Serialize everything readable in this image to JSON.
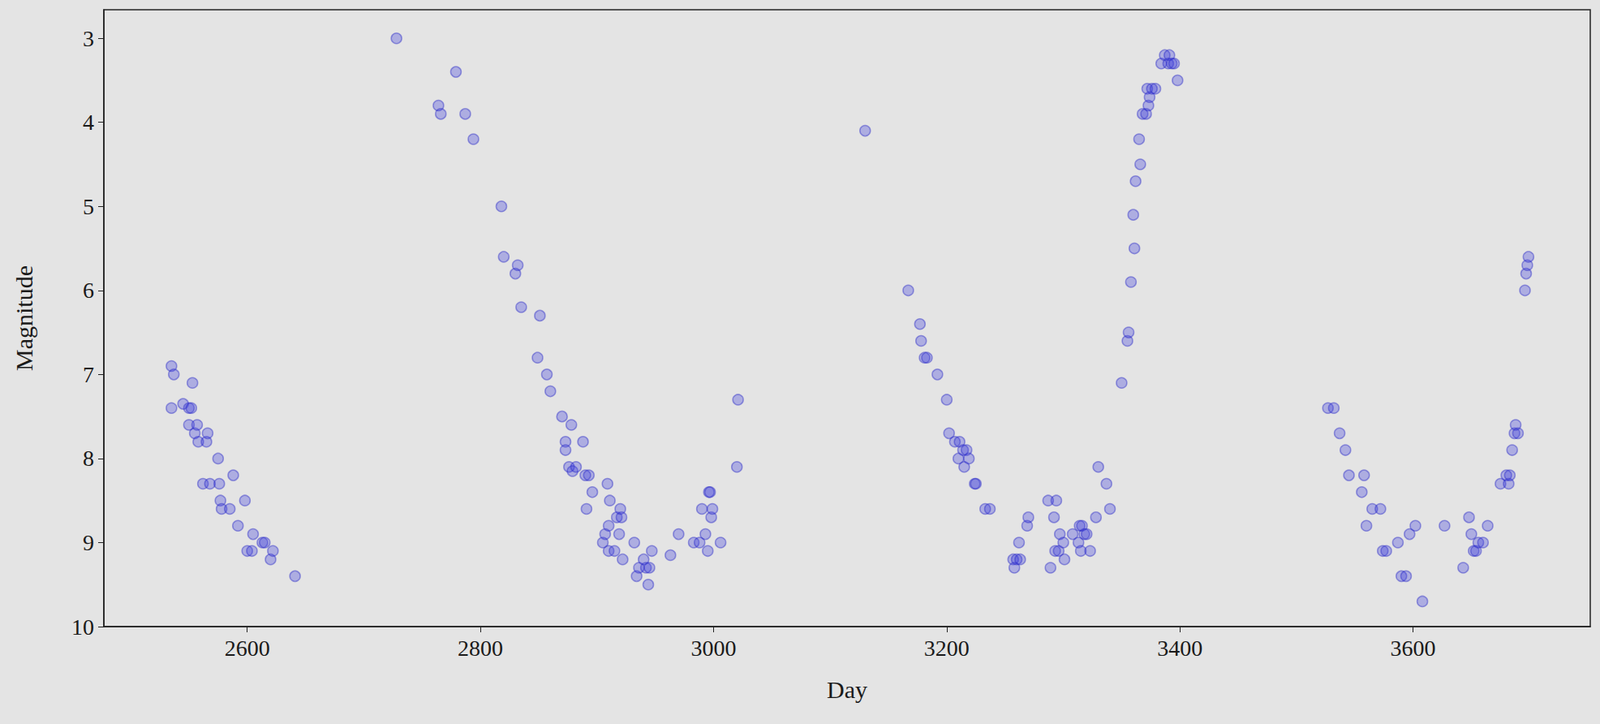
{
  "chart_data": {
    "type": "scatter",
    "xlabel": "Day",
    "ylabel": "Magnitude",
    "color": "#3b3bdc",
    "marker": "circle",
    "grid": false,
    "xlim": [
      2477,
      3752
    ],
    "ylim": [
      10,
      2.66
    ],
    "xticks": [
      2600,
      2800,
      3000,
      3200,
      3400,
      3600
    ],
    "yticks": [
      3,
      4,
      5,
      6,
      7,
      8,
      9,
      10
    ],
    "x": [
      2535,
      2537,
      2535,
      2545,
      2550,
      2552,
      2553,
      2550,
      2555,
      2557,
      2558,
      2562,
      2565,
      2566,
      2568,
      2575,
      2576,
      2577,
      2578,
      2585,
      2588,
      2592,
      2598,
      2600,
      2604,
      2605,
      2613,
      2615,
      2620,
      2622,
      2641,
      2728,
      2764,
      2766,
      2779,
      2787,
      2794,
      2818,
      2820,
      2830,
      2832,
      2835,
      2851,
      2849,
      2857,
      2860,
      2870,
      2873,
      2873,
      2876,
      2878,
      2879,
      2882,
      2888,
      2890,
      2891,
      2893,
      2896,
      2905,
      2907,
      2909,
      2910,
      2910,
      2911,
      2915,
      2917,
      2919,
      2920,
      2921,
      2922,
      2932,
      2934,
      2936,
      2940,
      2942,
      2944,
      2945,
      2947,
      2963,
      2970,
      2983,
      2988,
      2990,
      2993,
      2995,
      2996,
      2997,
      2998,
      2999,
      3006,
      3020,
      3021,
      3130,
      3167,
      3177,
      3178,
      3181,
      3183,
      3192,
      3200,
      3202,
      3207,
      3210,
      3211,
      3214,
      3215,
      3217,
      3219,
      3224,
      3225,
      3233,
      3237,
      3257,
      3258,
      3260,
      3262,
      3263,
      3269,
      3270,
      3287,
      3289,
      3292,
      3293,
      3294,
      3296,
      3297,
      3300,
      3301,
      3308,
      3313,
      3314,
      3315,
      3316,
      3318,
      3320,
      3323,
      3328,
      3330,
      3337,
      3340,
      3350,
      3355,
      3356,
      3358,
      3360,
      3361,
      3362,
      3365,
      3366,
      3368,
      3371,
      3372,
      3373,
      3374,
      3376,
      3379,
      3384,
      3387,
      3390,
      3391,
      3393,
      3395,
      3398,
      3527,
      3532,
      3537,
      3542,
      3545,
      3556,
      3558,
      3560,
      3565,
      3572,
      3574,
      3577,
      3587,
      3590,
      3594,
      3597,
      3602,
      3608,
      3627,
      3643,
      3648,
      3650,
      3652,
      3654,
      3656,
      3660,
      3664,
      3675,
      3680,
      3682,
      3683,
      3685,
      3687,
      3688,
      3690,
      3696,
      3697,
      3698,
      3699
    ],
    "values": [
      6.9,
      7.0,
      7.4,
      7.35,
      7.4,
      7.4,
      7.1,
      7.6,
      7.7,
      7.6,
      7.8,
      8.3,
      7.8,
      7.7,
      8.3,
      8.0,
      8.3,
      8.5,
      8.6,
      8.6,
      8.2,
      8.8,
      8.5,
      9.1,
      9.1,
      8.9,
      9.0,
      9.0,
      9.2,
      9.1,
      9.4,
      3.0,
      3.8,
      3.9,
      3.4,
      3.9,
      4.2,
      5.0,
      5.6,
      5.8,
      5.7,
      6.2,
      6.3,
      6.8,
      7.0,
      7.2,
      7.5,
      7.8,
      7.9,
      8.1,
      7.6,
      8.15,
      8.1,
      7.8,
      8.2,
      8.6,
      8.2,
      8.4,
      9.0,
      8.9,
      8.3,
      8.8,
      9.1,
      8.5,
      9.1,
      8.7,
      8.9,
      8.6,
      8.7,
      9.2,
      9.0,
      9.4,
      9.3,
      9.2,
      9.3,
      9.5,
      9.3,
      9.1,
      9.15,
      8.9,
      9.0,
      9.0,
      8.6,
      8.9,
      9.1,
      8.4,
      8.4,
      8.7,
      8.6,
      9.0,
      8.1,
      7.3,
      4.1,
      6.0,
      6.4,
      6.6,
      6.8,
      6.8,
      7.0,
      7.3,
      7.7,
      7.8,
      8.0,
      7.8,
      7.9,
      8.1,
      7.9,
      8.0,
      8.3,
      8.3,
      8.6,
      8.6,
      9.2,
      9.3,
      9.2,
      9.0,
      9.2,
      8.8,
      8.7,
      8.5,
      9.3,
      8.7,
      9.1,
      8.5,
      9.1,
      8.9,
      9.0,
      9.2,
      8.9,
      9.0,
      8.8,
      9.1,
      8.8,
      8.9,
      8.9,
      9.1,
      8.7,
      8.1,
      8.3,
      8.6,
      7.1,
      6.6,
      6.5,
      5.9,
      5.1,
      5.5,
      4.7,
      4.2,
      4.5,
      3.9,
      3.9,
      3.6,
      3.8,
      3.7,
      3.6,
      3.6,
      3.3,
      3.2,
      3.3,
      3.2,
      3.3,
      3.3,
      3.5,
      7.4,
      7.4,
      7.7,
      7.9,
      8.2,
      8.4,
      8.2,
      8.8,
      8.6,
      8.6,
      9.1,
      9.1,
      9.0,
      9.4,
      9.4,
      8.9,
      8.8,
      9.7,
      8.8,
      9.3,
      8.7,
      8.9,
      9.1,
      9.1,
      9.0,
      9.0,
      8.8,
      8.3,
      8.2,
      8.3,
      8.2,
      7.9,
      7.7,
      7.6,
      7.7,
      6.0,
      5.8,
      5.7,
      5.6
    ]
  }
}
